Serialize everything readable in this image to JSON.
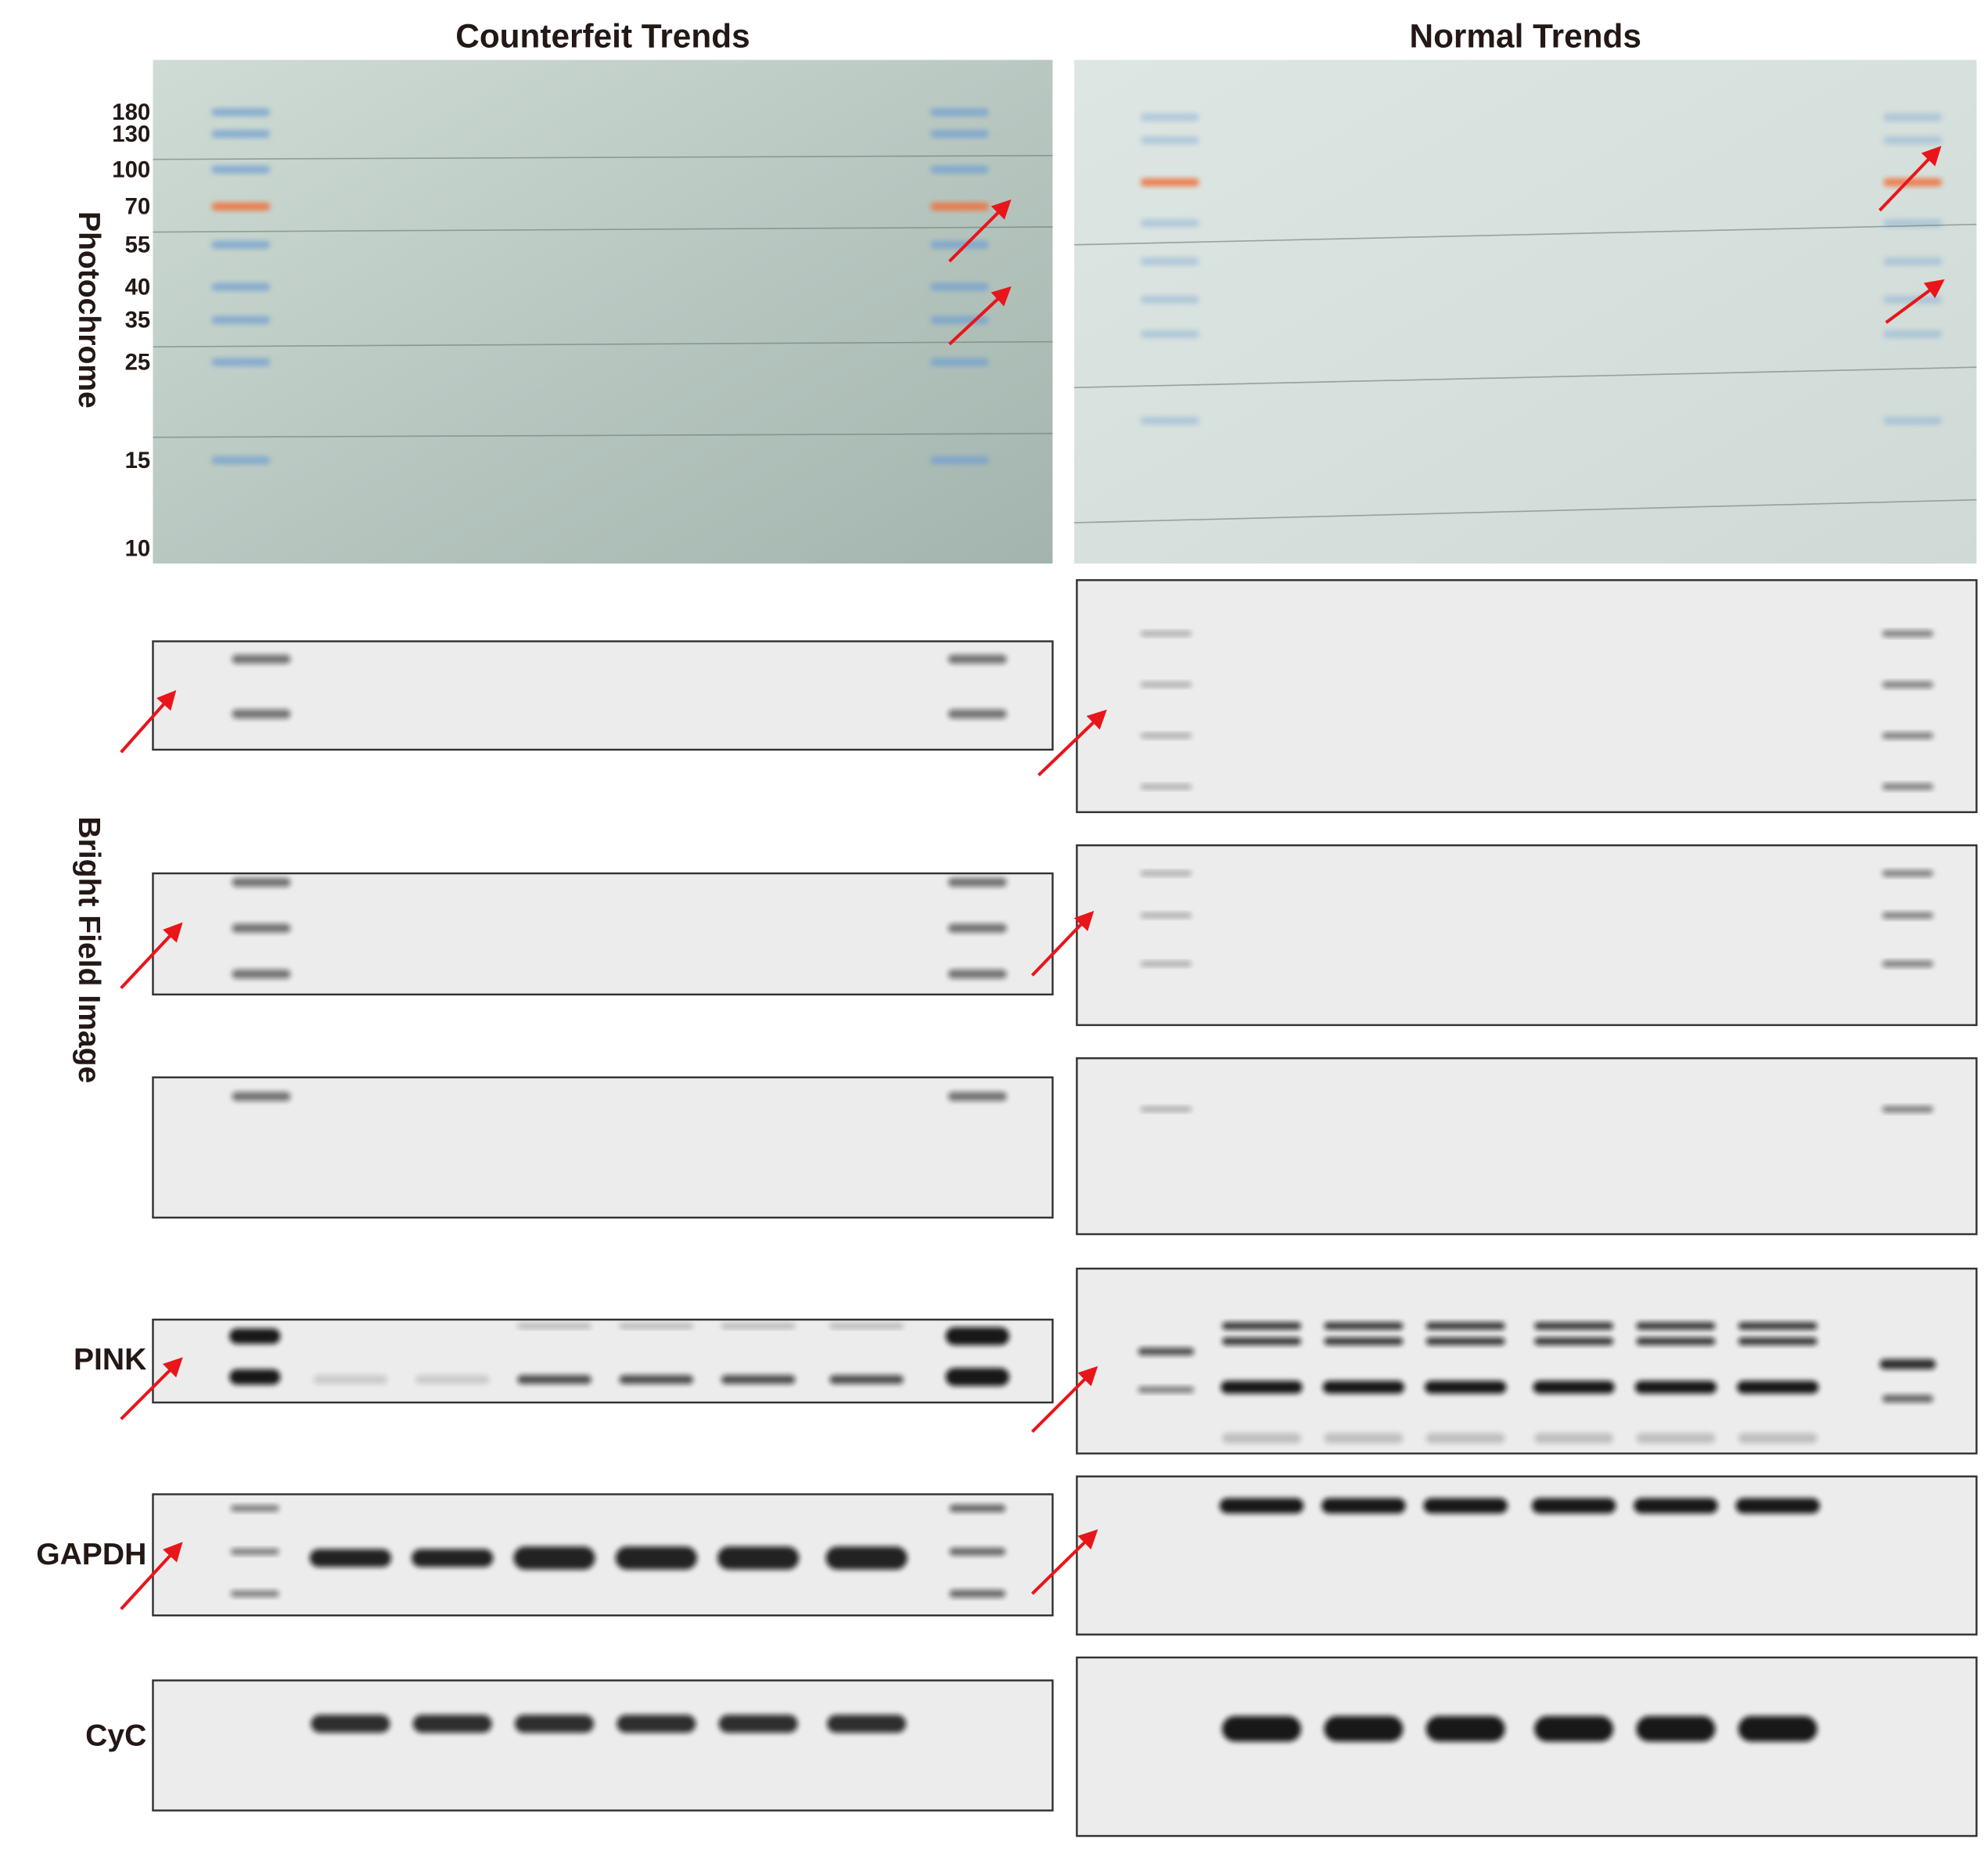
{
  "header": {
    "titles": [
      "Counterfeit Trends",
      "Normal Trends"
    ]
  },
  "photochrome": {
    "label": "Photochrome",
    "markers": [
      180,
      130,
      100,
      70,
      55,
      40,
      35,
      25,
      15,
      10
    ]
  },
  "bright_field": {
    "label": "Bright Field Image"
  },
  "rows": [
    "PINK",
    "GAPDH",
    "CyC"
  ]
}
